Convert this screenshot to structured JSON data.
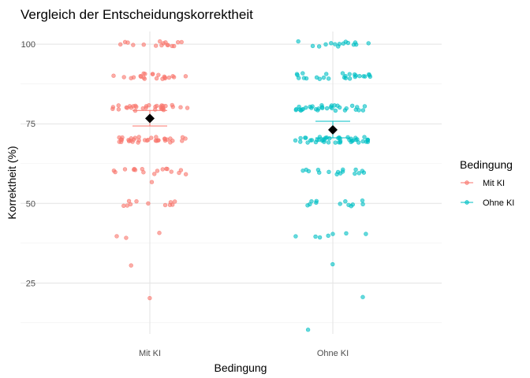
{
  "chart_data": {
    "type": "scatter",
    "title": "Vergleich der Entscheidungskorrektheit",
    "xlabel": "Bedingung",
    "ylabel": "Korrektheit (%)",
    "categories": [
      "Mit KI",
      "Ohne KI"
    ],
    "y_ticks": [
      25,
      50,
      75,
      100
    ],
    "y_tick_labels": [
      "25",
      "50",
      "75",
      "100"
    ],
    "ylim": [
      9,
      104
    ],
    "grid": true,
    "jitter": true,
    "legend": {
      "title": "Bedingung",
      "position": "right",
      "entries": [
        "Mit KI",
        "Ohne KI"
      ]
    },
    "colors": {
      "Mit KI": "#F8766D",
      "Ohne KI": "#00BFC4",
      "mean_marker": "#000000"
    },
    "series": [
      {
        "name": "Mit KI",
        "values": [
          100,
          100,
          100,
          100,
          100,
          100,
          100,
          100,
          100,
          100,
          100,
          100,
          100,
          100,
          100,
          100,
          90,
          90,
          90,
          90,
          90,
          90,
          90,
          90,
          90,
          90,
          90,
          90,
          90,
          90,
          90,
          90,
          90,
          90,
          90,
          90,
          90,
          90,
          80,
          80,
          80,
          80,
          80,
          80,
          80,
          80,
          80,
          80,
          80,
          80,
          80,
          80,
          80,
          80,
          80,
          80,
          80,
          80,
          80,
          80,
          80,
          80,
          80,
          80,
          80,
          80,
          80,
          80,
          80,
          80,
          70,
          70,
          70,
          70,
          70,
          70,
          70,
          70,
          70,
          70,
          70,
          70,
          70,
          70,
          70,
          70,
          70,
          70,
          70,
          70,
          70,
          70,
          70,
          70,
          70,
          70,
          70,
          70,
          70,
          70,
          70,
          70,
          70,
          70,
          70,
          60,
          60,
          60,
          60,
          60,
          60,
          60,
          60,
          60,
          60,
          60,
          60,
          60,
          60,
          60,
          60,
          60,
          56,
          50,
          50,
          50,
          50,
          50,
          50,
          50,
          50,
          50,
          50,
          50,
          40,
          40,
          40,
          30,
          20
        ],
        "mean": 76.7,
        "error_bar": [
          74.3,
          79.2
        ]
      },
      {
        "name": "Ohne KI",
        "values": [
          100,
          100,
          100,
          100,
          100,
          100,
          100,
          100,
          100,
          100,
          100,
          100,
          100,
          100,
          100,
          90,
          90,
          90,
          90,
          90,
          90,
          90,
          90,
          90,
          90,
          90,
          90,
          90,
          90,
          90,
          90,
          90,
          90,
          90,
          90,
          90,
          90,
          90,
          90,
          90,
          90,
          80,
          80,
          80,
          80,
          80,
          80,
          80,
          80,
          80,
          80,
          80,
          80,
          80,
          80,
          80,
          80,
          80,
          80,
          80,
          80,
          80,
          80,
          80,
          80,
          80,
          80,
          80,
          80,
          80,
          80,
          80,
          80,
          80,
          70,
          70,
          70,
          70,
          70,
          70,
          70,
          70,
          70,
          70,
          70,
          70,
          70,
          70,
          70,
          70,
          70,
          70,
          70,
          70,
          70,
          70,
          70,
          70,
          70,
          70,
          70,
          70,
          70,
          70,
          70,
          70,
          70,
          70,
          70,
          70,
          70,
          70,
          70,
          70,
          70,
          70,
          70,
          70,
          60,
          60,
          60,
          60,
          60,
          60,
          60,
          60,
          60,
          60,
          60,
          60,
          60,
          60,
          60,
          60,
          50,
          50,
          50,
          50,
          50,
          50,
          50,
          50,
          50,
          50,
          50,
          50,
          40,
          40,
          40,
          40,
          40,
          40,
          40,
          30,
          20,
          10
        ],
        "mean": 73.1,
        "error_bar": [
          70.6,
          75.8
        ]
      }
    ]
  }
}
